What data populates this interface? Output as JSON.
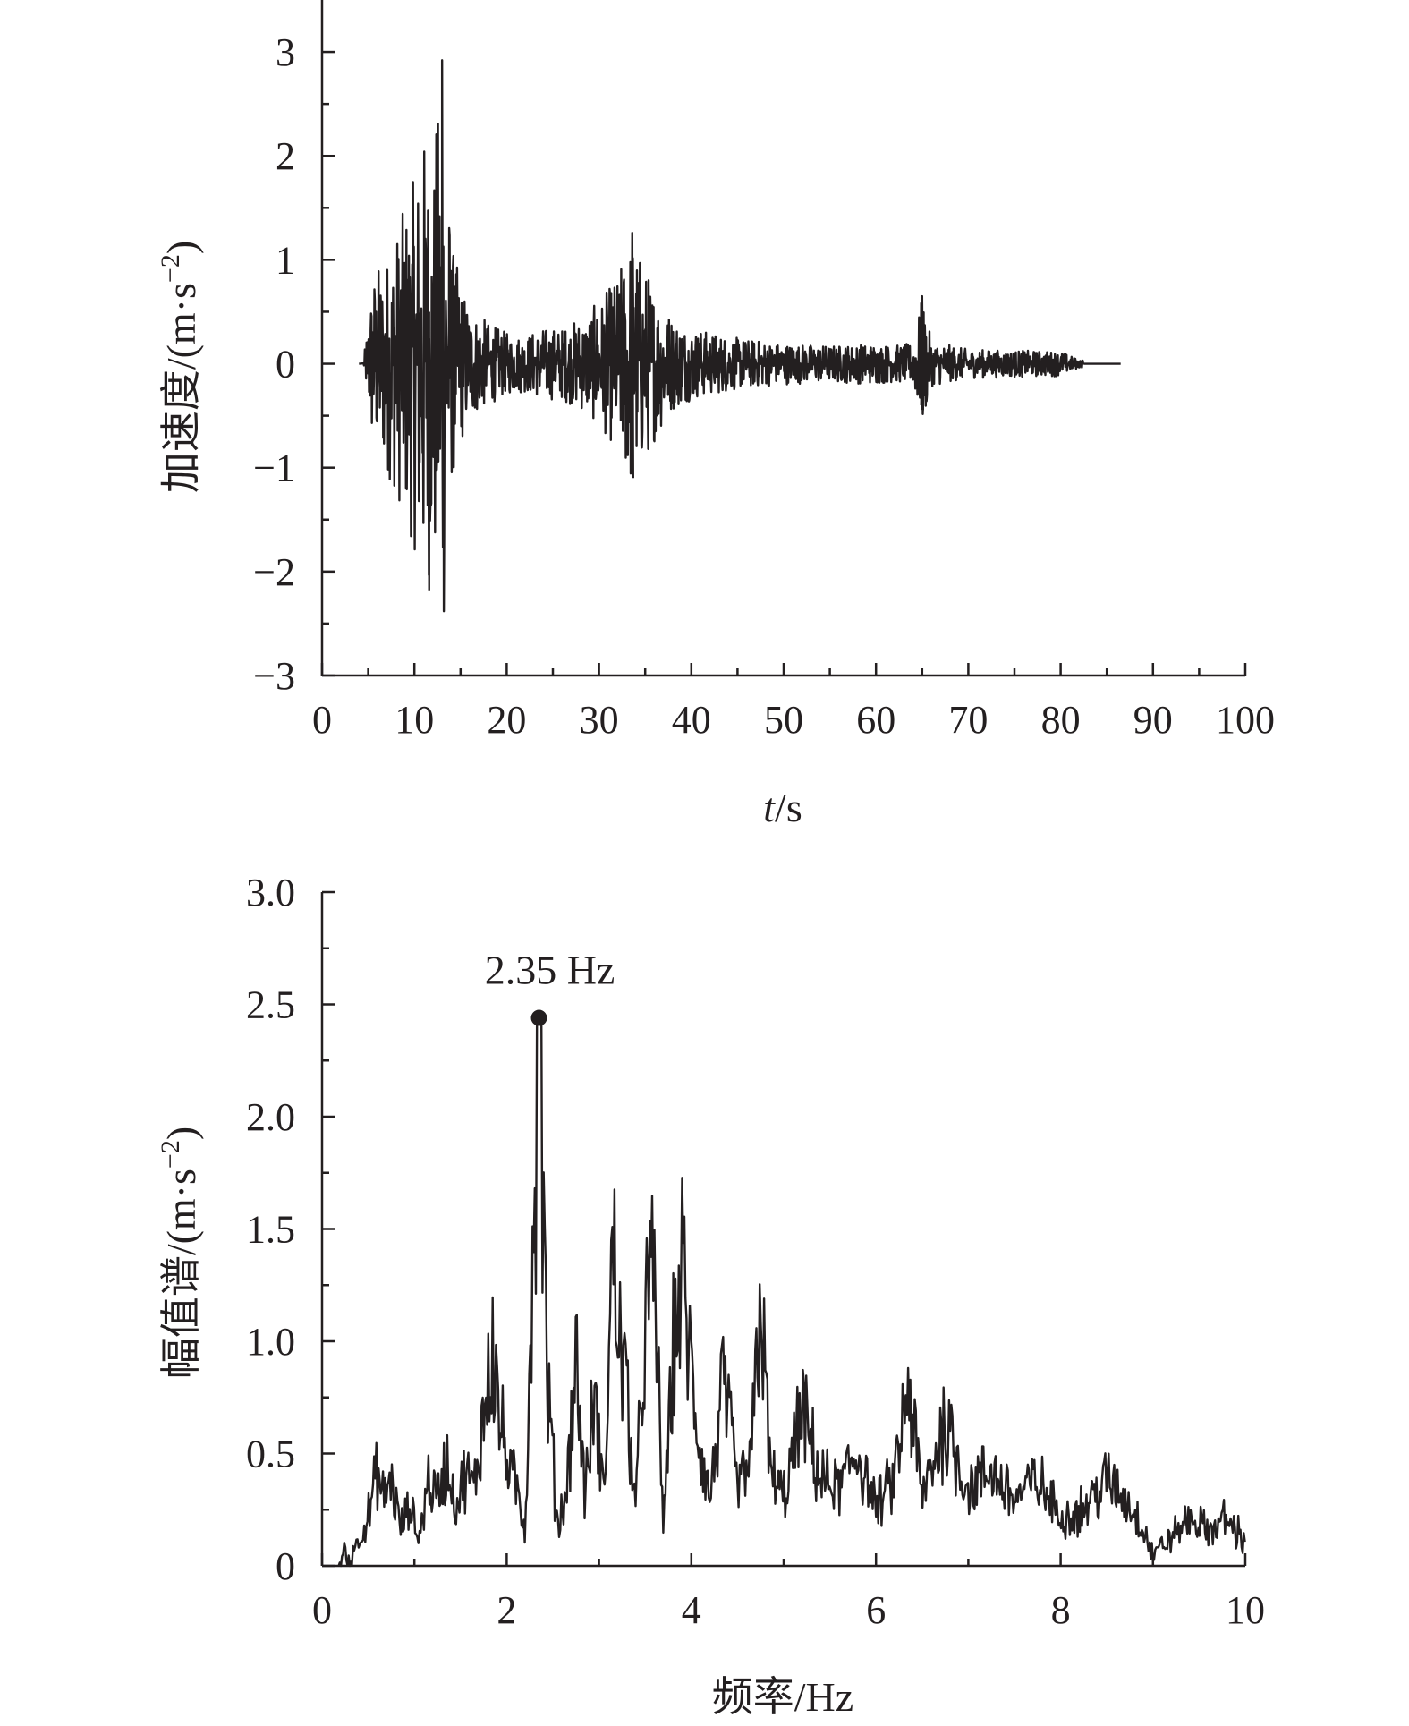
{
  "chart_data": [
    {
      "type": "line",
      "title": "",
      "xlabel_italic": "t",
      "xlabel_rest": "/s",
      "ylabel": "加速度/(m·s",
      "ylabel_sup": "−2",
      "ylabel_close": ")",
      "xlim": [
        0,
        100
      ],
      "ylim": [
        -3,
        3.5
      ],
      "xticks": [
        0,
        10,
        20,
        30,
        40,
        50,
        60,
        70,
        80,
        90,
        100
      ],
      "xtick_labels": [
        "0",
        "10",
        "20",
        "30",
        "40",
        "50",
        "60",
        "70",
        "80",
        "90",
        "100"
      ],
      "yticks": [
        -3,
        -2,
        -1,
        0,
        1,
        2,
        3
      ],
      "ytick_labels": [
        "−3",
        "−2",
        "−1",
        "0",
        "1",
        "2",
        "3"
      ],
      "grid": false,
      "signal_start": 4.5,
      "signal_end": 86.5,
      "peak": {
        "x": 13.0,
        "y": 2.92
      },
      "min": {
        "x": 11.6,
        "y": -2.18
      },
      "envelope_points": [
        [
          4.5,
          0.02
        ],
        [
          5.5,
          0.9
        ],
        [
          7,
          1.05
        ],
        [
          8.5,
          1.4
        ],
        [
          10,
          1.8
        ],
        [
          11,
          2.25
        ],
        [
          12,
          1.95
        ],
        [
          13,
          2.92
        ],
        [
          14,
          1.2
        ],
        [
          15,
          0.8
        ],
        [
          16,
          0.55
        ],
        [
          18,
          0.4
        ],
        [
          20,
          0.3
        ],
        [
          22,
          0.28
        ],
        [
          24,
          0.35
        ],
        [
          26,
          0.35
        ],
        [
          28,
          0.45
        ],
        [
          30,
          0.6
        ],
        [
          32,
          0.85
        ],
        [
          33.5,
          1.26
        ],
        [
          35,
          0.95
        ],
        [
          36,
          0.75
        ],
        [
          38,
          0.45
        ],
        [
          40,
          0.35
        ],
        [
          45,
          0.25
        ],
        [
          50,
          0.2
        ],
        [
          55,
          0.18
        ],
        [
          60,
          0.2
        ],
        [
          62,
          0.18
        ],
        [
          64,
          0.2
        ],
        [
          65,
          0.65
        ],
        [
          66,
          0.22
        ],
        [
          70,
          0.14
        ],
        [
          75,
          0.13
        ],
        [
          80,
          0.12
        ],
        [
          82,
          0.04
        ],
        [
          86.5,
          0.0
        ]
      ]
    },
    {
      "type": "line",
      "title": "",
      "xlabel": "频率/Hz",
      "ylabel": "幅值谱/(m·s",
      "ylabel_sup": "−2",
      "ylabel_close": ")",
      "xlim": [
        0,
        10
      ],
      "ylim": [
        0,
        3.0
      ],
      "xticks": [
        0,
        2,
        4,
        6,
        8,
        10
      ],
      "xtick_labels": [
        "0",
        "2",
        "4",
        "6",
        "8",
        "10"
      ],
      "yticks": [
        0,
        0.5,
        1.0,
        1.5,
        2.0,
        2.5,
        3.0
      ],
      "ytick_labels": [
        "0",
        "0.5",
        "1.0",
        "1.5",
        "2.0",
        "2.5",
        "3.0"
      ],
      "grid": false,
      "peak_marker": {
        "x": 2.35,
        "y": 2.44,
        "label": "2.35 Hz"
      },
      "spectrum_points": [
        [
          0.18,
          0.0
        ],
        [
          0.25,
          0.08
        ],
        [
          0.3,
          0.02
        ],
        [
          0.4,
          0.15
        ],
        [
          0.5,
          0.25
        ],
        [
          0.6,
          0.5
        ],
        [
          0.65,
          0.35
        ],
        [
          0.75,
          0.45
        ],
        [
          0.85,
          0.2
        ],
        [
          0.95,
          0.3
        ],
        [
          1.05,
          0.15
        ],
        [
          1.15,
          0.45
        ],
        [
          1.25,
          0.35
        ],
        [
          1.35,
          0.55
        ],
        [
          1.45,
          0.3
        ],
        [
          1.55,
          0.48
        ],
        [
          1.65,
          0.4
        ],
        [
          1.75,
          0.8
        ],
        [
          1.85,
          1.15
        ],
        [
          1.9,
          0.85
        ],
        [
          2.0,
          0.55
        ],
        [
          2.1,
          0.4
        ],
        [
          2.2,
          0.2
        ],
        [
          2.25,
          1.05
        ],
        [
          2.3,
          2.1
        ],
        [
          2.35,
          2.44
        ],
        [
          2.4,
          1.7
        ],
        [
          2.45,
          0.9
        ],
        [
          2.55,
          0.2
        ],
        [
          2.65,
          0.4
        ],
        [
          2.75,
          1.1
        ],
        [
          2.85,
          0.35
        ],
        [
          2.95,
          0.9
        ],
        [
          3.05,
          0.35
        ],
        [
          3.15,
          1.68
        ],
        [
          3.2,
          1.3
        ],
        [
          3.3,
          0.9
        ],
        [
          3.4,
          0.3
        ],
        [
          3.5,
          1.3
        ],
        [
          3.6,
          1.5
        ],
        [
          3.7,
          0.2
        ],
        [
          3.8,
          1.1
        ],
        [
          3.9,
          1.55
        ],
        [
          4.0,
          1.0
        ],
        [
          4.1,
          0.6
        ],
        [
          4.2,
          0.35
        ],
        [
          4.35,
          0.95
        ],
        [
          4.5,
          0.4
        ],
        [
          4.65,
          0.55
        ],
        [
          4.75,
          1.45
        ],
        [
          4.85,
          0.5
        ],
        [
          5.0,
          0.35
        ],
        [
          5.2,
          0.8
        ],
        [
          5.4,
          0.45
        ],
        [
          5.6,
          0.4
        ],
        [
          5.8,
          0.6
        ],
        [
          6.0,
          0.3
        ],
        [
          6.2,
          0.45
        ],
        [
          6.35,
          0.95
        ],
        [
          6.5,
          0.35
        ],
        [
          6.75,
          0.75
        ],
        [
          7.0,
          0.4
        ],
        [
          7.25,
          0.5
        ],
        [
          7.5,
          0.35
        ],
        [
          7.75,
          0.45
        ],
        [
          8.0,
          0.25
        ],
        [
          8.25,
          0.3
        ],
        [
          8.5,
          0.45
        ],
        [
          8.7,
          0.35
        ],
        [
          8.9,
          0.2
        ],
        [
          9.0,
          0.05
        ],
        [
          9.2,
          0.15
        ],
        [
          9.4,
          0.25
        ],
        [
          9.6,
          0.18
        ],
        [
          9.8,
          0.25
        ],
        [
          10.0,
          0.12
        ]
      ]
    }
  ]
}
